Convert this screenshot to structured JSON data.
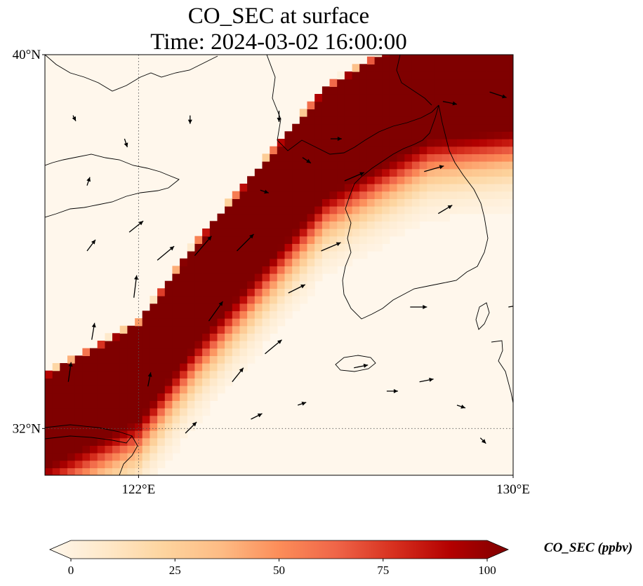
{
  "title_line1": "CO_SEC at surface",
  "title_line2": "Time: 2024-03-02 16:00:00",
  "map": {
    "lon_range": [
      120,
      130
    ],
    "lat_range": [
      31,
      40
    ],
    "lat_ticks": [
      {
        "value": 40,
        "label": "40°N"
      },
      {
        "value": 32,
        "label": "32°N"
      }
    ],
    "lon_ticks": [
      {
        "value": 122,
        "label": "122°E"
      },
      {
        "value": 130,
        "label": "130°E"
      }
    ],
    "gridlines": {
      "lon": [
        122
      ],
      "lat": [
        32
      ],
      "style": "dotted"
    }
  },
  "colorbar": {
    "label": "CO_SEC (ppbv)",
    "min": 0,
    "max": 100,
    "ticks": [
      {
        "value": 0,
        "label": "0"
      },
      {
        "value": 25,
        "label": "25"
      },
      {
        "value": 50,
        "label": "50"
      },
      {
        "value": 75,
        "label": "75"
      },
      {
        "value": 100,
        "label": "100"
      }
    ],
    "colormap": "OrRd",
    "colors": [
      "#fff7ec",
      "#fee8c8",
      "#fdd49e",
      "#fdbb84",
      "#fc8d59",
      "#ef6548",
      "#d7301f",
      "#b30000",
      "#7f0000"
    ],
    "extend": "both"
  },
  "plume_axis": [
    [
      120.0,
      31.2
    ],
    [
      122.0,
      32.2
    ],
    [
      123.2,
      33.8
    ],
    [
      124.6,
      35.4
    ],
    [
      126.0,
      37.0
    ],
    [
      128.2,
      38.2
    ],
    [
      130.0,
      38.4
    ]
  ],
  "wind_vectors": [
    {
      "lon": 120.5,
      "lat": 33.0,
      "u": 1,
      "v": 7
    },
    {
      "lon": 121.0,
      "lat": 33.9,
      "u": 1,
      "v": 6
    },
    {
      "lon": 121.9,
      "lat": 34.8,
      "u": 1,
      "v": 8
    },
    {
      "lon": 120.9,
      "lat": 35.8,
      "u": 3,
      "v": 4
    },
    {
      "lon": 121.8,
      "lat": 36.2,
      "u": 5,
      "v": 4
    },
    {
      "lon": 122.4,
      "lat": 35.6,
      "u": 6,
      "v": 5
    },
    {
      "lon": 123.2,
      "lat": 35.7,
      "u": 6,
      "v": 7
    },
    {
      "lon": 124.1,
      "lat": 35.8,
      "u": 6,
      "v": 6
    },
    {
      "lon": 123.5,
      "lat": 34.3,
      "u": 5,
      "v": 7
    },
    {
      "lon": 124.7,
      "lat": 33.6,
      "u": 6,
      "v": 5
    },
    {
      "lon": 125.2,
      "lat": 34.9,
      "u": 6,
      "v": 3
    },
    {
      "lon": 125.9,
      "lat": 35.8,
      "u": 7,
      "v": 3
    },
    {
      "lon": 126.4,
      "lat": 37.3,
      "u": 7,
      "v": 3
    },
    {
      "lon": 124.0,
      "lat": 33.0,
      "u": 4,
      "v": 5
    },
    {
      "lon": 122.2,
      "lat": 32.9,
      "u": 1,
      "v": 5
    },
    {
      "lon": 123.0,
      "lat": 31.9,
      "u": 4,
      "v": 4
    },
    {
      "lon": 124.4,
      "lat": 32.2,
      "u": 4,
      "v": 2
    },
    {
      "lon": 125.4,
      "lat": 32.5,
      "u": 3,
      "v": 1
    },
    {
      "lon": 126.6,
      "lat": 33.3,
      "u": 5,
      "v": 1
    },
    {
      "lon": 127.3,
      "lat": 32.8,
      "u": 4,
      "v": 0
    },
    {
      "lon": 128.0,
      "lat": 33.0,
      "u": 5,
      "v": 1
    },
    {
      "lon": 128.8,
      "lat": 32.5,
      "u": 3,
      "v": -1
    },
    {
      "lon": 129.3,
      "lat": 31.8,
      "u": 2,
      "v": -2
    },
    {
      "lon": 127.8,
      "lat": 34.6,
      "u": 6,
      "v": 0
    },
    {
      "lon": 129.9,
      "lat": 34.6,
      "u": 6,
      "v": 1
    },
    {
      "lon": 128.4,
      "lat": 36.6,
      "u": 5,
      "v": 3
    },
    {
      "lon": 128.1,
      "lat": 37.5,
      "u": 7,
      "v": 2
    },
    {
      "lon": 129.5,
      "lat": 39.2,
      "u": 6,
      "v": -2
    },
    {
      "lon": 128.5,
      "lat": 39.0,
      "u": 5,
      "v": -1
    },
    {
      "lon": 126.1,
      "lat": 38.2,
      "u": 4,
      "v": 0
    },
    {
      "lon": 124.6,
      "lat": 37.1,
      "u": 3,
      "v": -1
    },
    {
      "lon": 123.1,
      "lat": 38.7,
      "u": 0,
      "v": -3
    },
    {
      "lon": 121.7,
      "lat": 38.2,
      "u": 1,
      "v": -3
    },
    {
      "lon": 120.9,
      "lat": 37.2,
      "u": 1,
      "v": 3
    },
    {
      "lon": 120.6,
      "lat": 38.7,
      "u": 1,
      "v": -2
    },
    {
      "lon": 125.0,
      "lat": 38.8,
      "u": 0,
      "v": -4
    },
    {
      "lon": 125.5,
      "lat": 37.8,
      "u": 3,
      "v": -2
    }
  ]
}
